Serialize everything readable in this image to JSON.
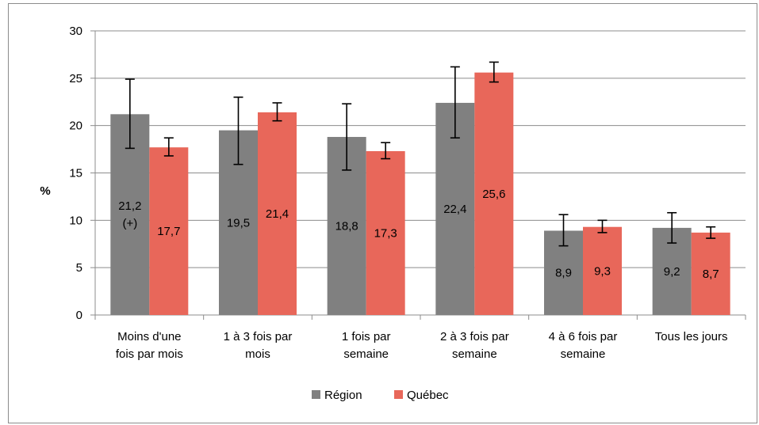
{
  "chart_data": {
    "type": "bar",
    "title": "",
    "xlabel": "",
    "ylabel": "%",
    "ylim": [
      0,
      30
    ],
    "yticks": [
      0,
      5,
      10,
      15,
      20,
      25,
      30
    ],
    "ytick_labels": [
      "0",
      "5",
      "10",
      "15",
      "20",
      "25",
      "30"
    ],
    "grid": true,
    "legend_position": "bottom",
    "categories": [
      [
        "Moins d'une",
        "fois par mois"
      ],
      [
        "1 à 3 fois par",
        "mois"
      ],
      [
        "1 fois par",
        "semaine"
      ],
      [
        "2 à 3 fois par",
        "semaine"
      ],
      [
        "4 à 6 fois par",
        "semaine"
      ],
      [
        "Tous les jours"
      ]
    ],
    "series": [
      {
        "name": "Région",
        "color": "#808080",
        "values": [
          21.2,
          19.5,
          18.8,
          22.4,
          8.9,
          9.2
        ],
        "labels": [
          [
            "21,2",
            "(+)"
          ],
          [
            "19,5"
          ],
          [
            "18,8"
          ],
          [
            "22,4"
          ],
          [
            "8,9"
          ],
          [
            "9,2"
          ]
        ],
        "error_low": [
          17.6,
          15.9,
          15.3,
          18.7,
          7.3,
          7.6
        ],
        "error_high": [
          24.9,
          23.0,
          22.3,
          26.2,
          10.6,
          10.8
        ]
      },
      {
        "name": "Québec",
        "color": "#E8675A",
        "values": [
          17.7,
          21.4,
          17.3,
          25.6,
          9.3,
          8.7
        ],
        "labels": [
          [
            "17,7"
          ],
          [
            "21,4"
          ],
          [
            "17,3"
          ],
          [
            "25,6"
          ],
          [
            "9,3"
          ],
          [
            "8,7"
          ]
        ],
        "error_low": [
          16.8,
          20.5,
          16.5,
          24.6,
          8.7,
          8.1
        ],
        "error_high": [
          18.7,
          22.4,
          18.2,
          26.7,
          10.0,
          9.3
        ]
      }
    ]
  }
}
